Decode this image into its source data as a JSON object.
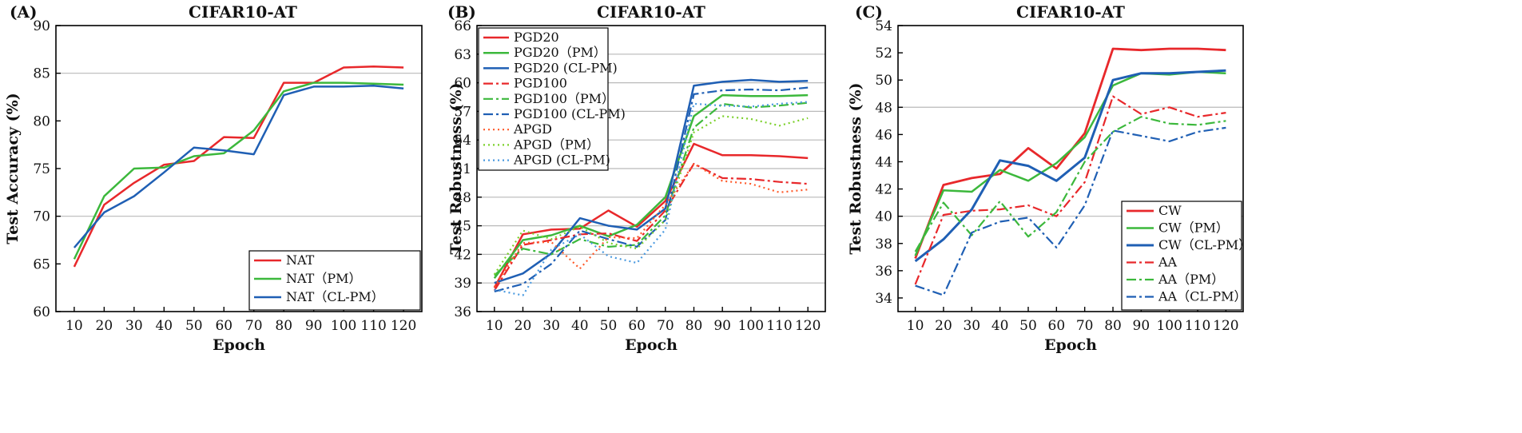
{
  "colors": {
    "red": "#e8282b",
    "green": "#3cb83c",
    "blue": "#1f5fb4",
    "grid": "#b9b9b9",
    "lightblue": "#4a9ae0",
    "orange": "#ff5a2a",
    "lightgreen": "#7bd02a"
  },
  "chart_data": [
    {
      "type": "line",
      "panel_label": "(A)",
      "title": "CIFAR10-AT",
      "xlabel": "Epoch",
      "ylabel": "Test Accuracy (%)",
      "x": [
        10,
        20,
        30,
        40,
        50,
        60,
        70,
        80,
        90,
        100,
        110,
        120
      ],
      "xticks": [
        "10",
        "20",
        "30",
        "40",
        "50",
        "60",
        "70",
        "80",
        "90",
        "100",
        "110",
        "120"
      ],
      "ylim": [
        60,
        90
      ],
      "yticks": [
        "60",
        "65",
        "70",
        "75",
        "80",
        "85",
        "90"
      ],
      "gridlines": [
        70,
        85
      ],
      "legend_position": "bottom-right",
      "series": [
        {
          "name": "NAT",
          "color": "red",
          "dash": "solid",
          "width": 2.5,
          "values": [
            64.7,
            71.2,
            73.5,
            75.4,
            75.8,
            78.3,
            78.2,
            84.0,
            84.0,
            85.6,
            85.7,
            85.6
          ]
        },
        {
          "name": "NAT（PM）",
          "color": "green",
          "dash": "solid",
          "width": 2.5,
          "values": [
            65.5,
            72.1,
            75.0,
            75.1,
            76.3,
            76.6,
            79.0,
            83.1,
            84.0,
            84.0,
            83.9,
            83.8
          ]
        },
        {
          "name": "NAT（CL-PM）",
          "color": "blue",
          "dash": "solid",
          "width": 2.5,
          "values": [
            66.7,
            70.4,
            72.1,
            74.6,
            77.2,
            76.9,
            76.5,
            82.7,
            83.6,
            83.6,
            83.7,
            83.4
          ]
        }
      ]
    },
    {
      "type": "line",
      "panel_label": "(B)",
      "title": "CIFAR10-AT",
      "xlabel": "Epoch",
      "ylabel": "Test Robustness (%)",
      "x": [
        10,
        20,
        30,
        40,
        50,
        60,
        70,
        80,
        90,
        100,
        110,
        120
      ],
      "xticks": [
        "10",
        "20",
        "30",
        "40",
        "50",
        "60",
        "70",
        "80",
        "90",
        "100",
        "110",
        "120"
      ],
      "ylim": [
        36,
        66
      ],
      "yticks": [
        "36",
        "39",
        "42",
        "45",
        "48",
        "51",
        "54",
        "57",
        "60",
        "63",
        "66"
      ],
      "gridlines": [
        39,
        42,
        45,
        48,
        51,
        54,
        57,
        60,
        63
      ],
      "legend_position": "top-left",
      "series": [
        {
          "name": "PGD20",
          "color": "red",
          "dash": "solid",
          "width": 2.5,
          "values": [
            38.5,
            44.1,
            44.6,
            44.7,
            46.6,
            44.9,
            47.6,
            53.6,
            52.4,
            52.4,
            52.3,
            52.1
          ]
        },
        {
          "name": "PGD20（PM）",
          "color": "green",
          "dash": "solid",
          "width": 2.5,
          "values": [
            39.5,
            43.5,
            44.0,
            45.0,
            43.9,
            45.1,
            48.0,
            56.5,
            58.7,
            58.6,
            58.6,
            58.7
          ]
        },
        {
          "name": "PGD20 (CL-PM)",
          "color": "blue",
          "dash": "solid",
          "width": 2.5,
          "values": [
            39.0,
            40.0,
            42.1,
            45.8,
            45.0,
            44.6,
            46.8,
            59.7,
            60.1,
            60.3,
            60.1,
            60.2
          ]
        },
        {
          "name": "PGD100",
          "color": "red",
          "dash": "dashdot",
          "width": 2.2,
          "values": [
            38.2,
            43.0,
            43.5,
            44.1,
            44.2,
            43.4,
            46.6,
            51.5,
            50.0,
            49.9,
            49.6,
            49.4
          ]
        },
        {
          "name": "PGD100（PM）",
          "color": "green",
          "dash": "dashdot",
          "width": 2.2,
          "values": [
            39.8,
            42.6,
            42.0,
            43.6,
            42.8,
            43.0,
            46.1,
            55.3,
            57.8,
            57.4,
            57.6,
            57.9
          ]
        },
        {
          "name": "PGD100 (CL-PM)",
          "color": "blue",
          "dash": "dashdot",
          "width": 2.2,
          "values": [
            38.1,
            38.9,
            41.0,
            44.5,
            43.6,
            42.8,
            45.6,
            58.8,
            59.2,
            59.3,
            59.2,
            59.5
          ]
        },
        {
          "name": "APGD",
          "color": "orange",
          "dash": "dot",
          "width": 2.2,
          "values": [
            38.6,
            43.2,
            43.3,
            40.5,
            43.8,
            43.7,
            47.2,
            51.5,
            49.7,
            49.4,
            48.5,
            48.8
          ]
        },
        {
          "name": "APGD（PM）",
          "color": "lightgreen",
          "dash": "dot",
          "width": 2.2,
          "values": [
            39.9,
            44.5,
            43.6,
            44.9,
            43.2,
            42.6,
            45.6,
            54.8,
            56.5,
            56.2,
            55.5,
            56.3
          ]
        },
        {
          "name": "APGD (CL-PM)",
          "color": "lightblue",
          "dash": "dot",
          "width": 2.2,
          "values": [
            38.3,
            37.7,
            42.5,
            44.1,
            41.8,
            41.1,
            44.6,
            57.8,
            57.6,
            57.5,
            57.8,
            58.0
          ]
        }
      ]
    },
    {
      "type": "line",
      "panel_label": "(C)",
      "title": "CIFAR10-AT",
      "xlabel": "Epoch",
      "ylabel": "Test Robustness (%)",
      "x": [
        10,
        20,
        30,
        40,
        50,
        60,
        70,
        80,
        90,
        100,
        110,
        120
      ],
      "xticks": [
        "10",
        "20",
        "30",
        "40",
        "50",
        "60",
        "70",
        "80",
        "90",
        "100",
        "110",
        "120"
      ],
      "ylim": [
        33,
        54
      ],
      "yticks": [
        "34",
        "36",
        "38",
        "40",
        "42",
        "44",
        "46",
        "48",
        "50",
        "52",
        "54"
      ],
      "gridlines": [
        40,
        48
      ],
      "legend_position": "bottom-right",
      "series": [
        {
          "name": "CW",
          "color": "red",
          "dash": "solid",
          "width": 2.8,
          "values": [
            36.9,
            42.3,
            42.8,
            43.1,
            45.0,
            43.5,
            46.1,
            52.3,
            52.2,
            52.3,
            52.3,
            52.2
          ]
        },
        {
          "name": "CW（PM）",
          "color": "green",
          "dash": "solid",
          "width": 2.5,
          "values": [
            37.1,
            41.9,
            41.8,
            43.4,
            42.6,
            43.9,
            45.8,
            49.6,
            50.5,
            50.4,
            50.6,
            50.5
          ]
        },
        {
          "name": "CW（CL-PM）",
          "color": "blue",
          "dash": "solid",
          "width": 3.0,
          "values": [
            36.7,
            38.3,
            40.5,
            44.1,
            43.7,
            42.6,
            44.3,
            50.0,
            50.5,
            50.5,
            50.6,
            50.7
          ]
        },
        {
          "name": "AA",
          "color": "red",
          "dash": "dashdot",
          "width": 2.2,
          "values": [
            35.0,
            40.1,
            40.4,
            40.5,
            40.8,
            40.0,
            42.5,
            48.8,
            47.5,
            48.0,
            47.3,
            47.6
          ]
        },
        {
          "name": "AA（PM）",
          "color": "green",
          "dash": "dashdot",
          "width": 2.2,
          "values": [
            37.4,
            41.0,
            38.6,
            41.1,
            38.5,
            40.3,
            44.0,
            46.2,
            47.3,
            46.8,
            46.7,
            47.0
          ]
        },
        {
          "name": "AA（CL-PM）",
          "color": "blue",
          "dash": "dashdot",
          "width": 2.2,
          "values": [
            34.9,
            34.2,
            38.8,
            39.6,
            39.9,
            37.7,
            40.8,
            46.3,
            45.9,
            45.5,
            46.2,
            46.5
          ]
        }
      ]
    }
  ]
}
